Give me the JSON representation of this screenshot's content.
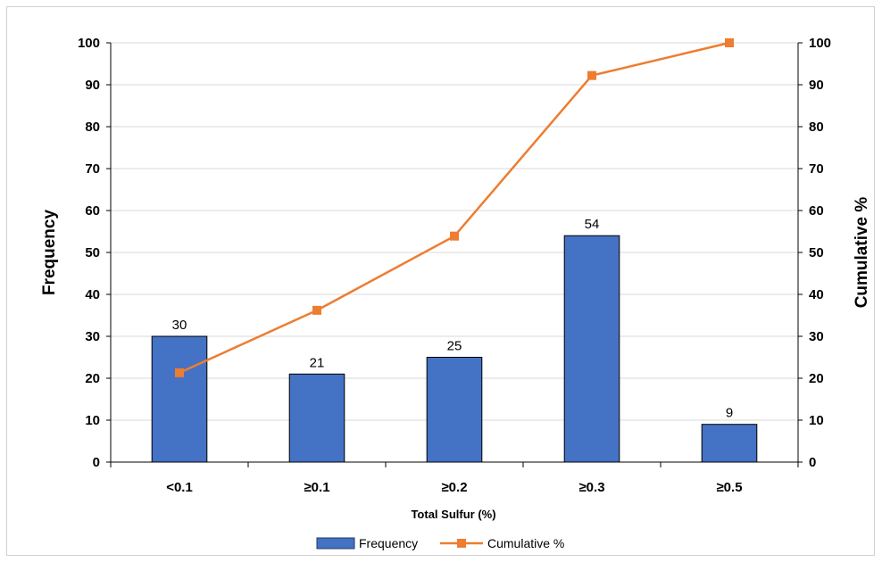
{
  "chart_data": {
    "type": "bar",
    "categories": [
      "<0.1",
      "≥0.1",
      "≥0.2",
      "≥0.3",
      "≥0.5"
    ],
    "series": [
      {
        "name": "Frequency",
        "type": "bar",
        "axis": "left",
        "color": "#4472C4",
        "values": [
          30,
          21,
          25,
          54,
          9
        ]
      },
      {
        "name": "Cumulative %",
        "type": "line",
        "axis": "right",
        "color": "#ED7D31",
        "values": [
          21.3,
          36.2,
          53.9,
          92.2,
          100
        ]
      }
    ],
    "data_labels": [
      "30",
      "21",
      "25",
      "54",
      "9"
    ],
    "xlabel": "Total Sulfur (%)",
    "ylabel": "Frequency",
    "y2label": "Cumulative %",
    "ylim": [
      0,
      100
    ],
    "y2lim": [
      0,
      100
    ],
    "yticks": [
      "0",
      "10",
      "20",
      "30",
      "40",
      "50",
      "60",
      "70",
      "80",
      "90",
      "100"
    ],
    "y2ticks": [
      "0",
      "10",
      "20",
      "30",
      "40",
      "50",
      "60",
      "70",
      "80",
      "90",
      "100"
    ],
    "grid": true,
    "legend_position": "bottom"
  }
}
